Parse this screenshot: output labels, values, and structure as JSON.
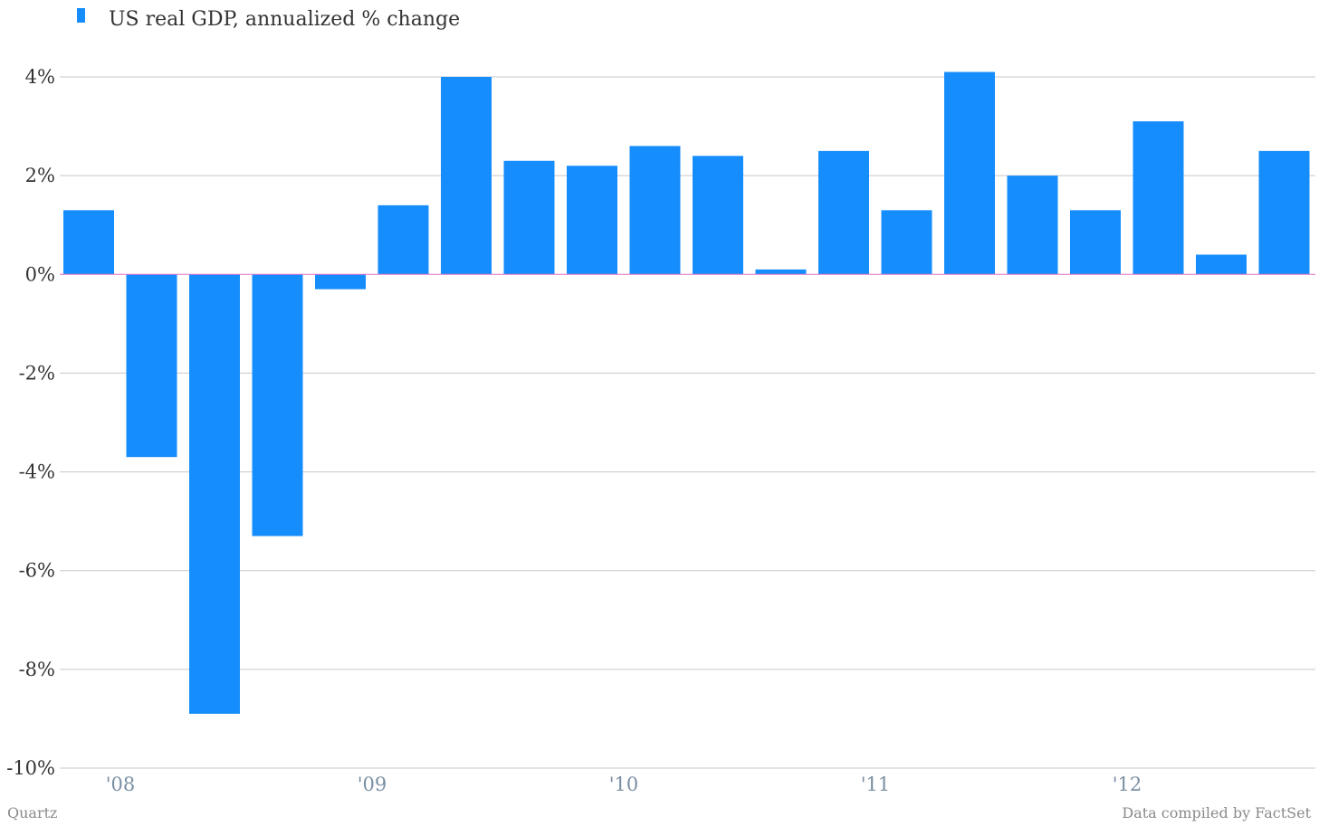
{
  "chart_data": {
    "type": "bar",
    "categories": [
      "Q1 2008",
      "Q2 2008",
      "Q3 2008",
      "Q4 2008",
      "Q1 2009",
      "Q2 2009",
      "Q3 2009",
      "Q4 2009",
      "Q1 2010",
      "Q2 2010",
      "Q3 2010",
      "Q4 2010",
      "Q1 2011",
      "Q2 2011",
      "Q3 2011",
      "Q4 2011",
      "Q1 2012",
      "Q2 2012",
      "Q3 2012",
      "Q4 2012"
    ],
    "series": [
      {
        "name": "US real GDP, annualized % change",
        "color": "#168dfc",
        "values": [
          1.3,
          -3.7,
          -8.9,
          -5.3,
          -0.3,
          1.4,
          4.0,
          2.3,
          2.2,
          2.6,
          2.4,
          0.1,
          2.5,
          1.3,
          4.1,
          2.0,
          1.3,
          3.1,
          0.4,
          2.5
        ]
      }
    ],
    "ylim": [
      -10,
      4
    ],
    "yticks": [
      {
        "value": 4,
        "label": "4%"
      },
      {
        "value": 2,
        "label": "2%"
      },
      {
        "value": 0,
        "label": "0%"
      },
      {
        "value": -2,
        "label": "-2%"
      },
      {
        "value": -4,
        "label": "-4%"
      },
      {
        "value": -6,
        "label": "-6%"
      },
      {
        "value": -8,
        "label": "-8%"
      },
      {
        "value": -10,
        "label": "-10%"
      }
    ],
    "xtick_labels": [
      {
        "category": "Q1 2008",
        "label": "'08"
      },
      {
        "category": "Q1 2009",
        "label": "'09"
      },
      {
        "category": "Q1 2010",
        "label": "'10"
      },
      {
        "category": "Q1 2011",
        "label": "'11"
      },
      {
        "category": "Q1 2012",
        "label": "'12"
      }
    ],
    "grid": true,
    "legend_position": "top-left",
    "zero_line_color": "#e36fc9",
    "grid_color": "#c8c8c8"
  },
  "footer": {
    "source_left": "Quartz",
    "source_right": "Data compiled by FactSet"
  }
}
